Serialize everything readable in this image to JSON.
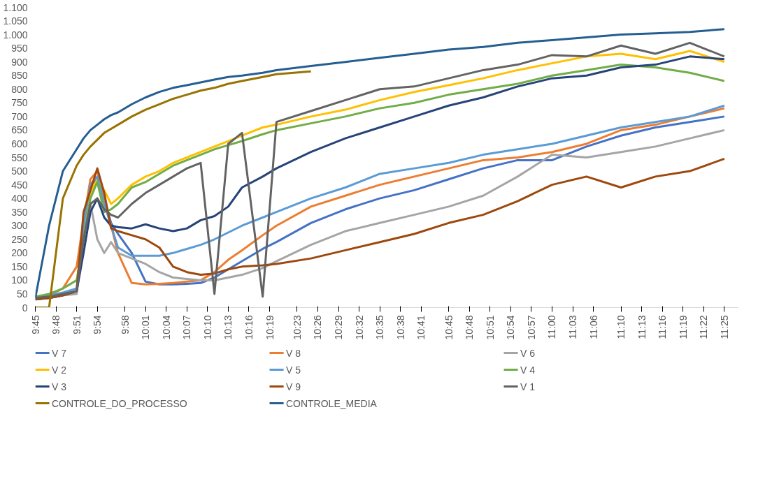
{
  "chart_data": {
    "type": "line",
    "x": [
      9.75,
      9.7833,
      9.8167,
      9.85,
      9.8667,
      9.8833,
      9.9,
      9.9167,
      9.9333,
      9.95,
      9.9833,
      10.0167,
      10.05,
      10.0833,
      10.1167,
      10.15,
      10.1833,
      10.2167,
      10.25,
      10.3,
      10.3333,
      10.4167,
      10.5,
      10.5833,
      10.6667,
      10.75,
      10.8333,
      10.9167,
      11.0,
      11.0833,
      11.1667,
      11.25,
      11.3333,
      11.4167
    ],
    "xlim": [
      9.75,
      11.45
    ],
    "xticks": [
      {
        "value": 9.75,
        "label": "9:45"
      },
      {
        "value": 9.8,
        "label": "9:48"
      },
      {
        "value": 9.85,
        "label": "9:51"
      },
      {
        "value": 9.9,
        "label": "9:54"
      },
      {
        "value": 9.9667,
        "label": "9:58"
      },
      {
        "value": 10.0167,
        "label": "10:01"
      },
      {
        "value": 10.0667,
        "label": "10:04"
      },
      {
        "value": 10.1167,
        "label": "10:07"
      },
      {
        "value": 10.1667,
        "label": "10:10"
      },
      {
        "value": 10.2167,
        "label": "10:13"
      },
      {
        "value": 10.2667,
        "label": "10:16"
      },
      {
        "value": 10.3167,
        "label": "10:19"
      },
      {
        "value": 10.3833,
        "label": "10:23"
      },
      {
        "value": 10.4333,
        "label": "10:26"
      },
      {
        "value": 10.4833,
        "label": "10:29"
      },
      {
        "value": 10.5333,
        "label": "10:32"
      },
      {
        "value": 10.5833,
        "label": "10:35"
      },
      {
        "value": 10.6333,
        "label": "10:38"
      },
      {
        "value": 10.6833,
        "label": "10:41"
      },
      {
        "value": 10.75,
        "label": "10:45"
      },
      {
        "value": 10.8,
        "label": "10:48"
      },
      {
        "value": 10.85,
        "label": "10:51"
      },
      {
        "value": 10.9,
        "label": "10:54"
      },
      {
        "value": 10.95,
        "label": "10:57"
      },
      {
        "value": 11.0,
        "label": "11:00"
      },
      {
        "value": 11.05,
        "label": "11:03"
      },
      {
        "value": 11.1,
        "label": "11:06"
      },
      {
        "value": 11.1667,
        "label": "11:10"
      },
      {
        "value": 11.2167,
        "label": "11:13"
      },
      {
        "value": 11.2667,
        "label": "11:16"
      },
      {
        "value": 11.3167,
        "label": "11:19"
      },
      {
        "value": 11.3667,
        "label": "11:22"
      },
      {
        "value": 11.4167,
        "label": "11:25"
      }
    ],
    "ylim": [
      0,
      1100
    ],
    "yticks": [
      0,
      50,
      100,
      150,
      200,
      250,
      300,
      350,
      400,
      450,
      500,
      550,
      600,
      650,
      700,
      750,
      800,
      850,
      900,
      950,
      {
        "value": 1000,
        "label": "1.000"
      },
      {
        "value": 1050,
        "label": "1.050"
      },
      {
        "value": 1100,
        "label": "1.100"
      }
    ],
    "legend": "bottom",
    "series": [
      {
        "name": "V 7",
        "color": "#4472c4",
        "values": [
          40,
          40,
          50,
          60,
          300,
          450,
          470,
          400,
          310,
          270,
          200,
          95,
          85,
          85,
          87,
          90,
          110,
          140,
          170,
          215,
          240,
          310,
          360,
          400,
          430,
          470,
          510,
          540,
          540,
          590,
          630,
          660,
          680,
          700
        ]
      },
      {
        "name": "V 8",
        "color": "#ed7d31",
        "values": [
          40,
          45,
          70,
          150,
          320,
          470,
          500,
          400,
          300,
          200,
          90,
          85,
          87,
          90,
          95,
          100,
          130,
          175,
          210,
          265,
          300,
          370,
          410,
          450,
          480,
          510,
          540,
          550,
          570,
          600,
          650,
          670,
          700,
          730
        ]
      },
      {
        "name": "V 6",
        "color": "#a5a5a5",
        "values": [
          40,
          40,
          45,
          50,
          250,
          380,
          250,
          200,
          240,
          200,
          180,
          160,
          130,
          110,
          105,
          100,
          100,
          110,
          120,
          145,
          170,
          230,
          280,
          310,
          340,
          370,
          410,
          480,
          560,
          550,
          570,
          590,
          620,
          650
        ]
      },
      {
        "name": "V 2",
        "color": "#ffc000",
        "values": [
          null,
          null,
          null,
          null,
          250,
          420,
          470,
          430,
          380,
          400,
          450,
          480,
          500,
          530,
          550,
          570,
          590,
          610,
          630,
          660,
          670,
          700,
          725,
          760,
          790,
          815,
          840,
          870,
          895,
          920,
          930,
          910,
          940,
          900
        ]
      },
      {
        "name": "V 5",
        "color": "#5b9bd5",
        "values": [
          40,
          45,
          55,
          70,
          300,
          450,
          480,
          380,
          300,
          220,
          190,
          190,
          190,
          200,
          215,
          230,
          250,
          275,
          300,
          330,
          350,
          400,
          440,
          490,
          510,
          530,
          560,
          580,
          600,
          630,
          660,
          680,
          700,
          740
        ]
      },
      {
        "name": "V 4",
        "color": "#70ad47",
        "values": [
          40,
          50,
          70,
          100,
          250,
          400,
          460,
          350,
          360,
          380,
          440,
          460,
          490,
          520,
          540,
          560,
          580,
          595,
          610,
          635,
          650,
          675,
          700,
          730,
          750,
          780,
          800,
          820,
          850,
          870,
          890,
          880,
          860,
          830
        ]
      },
      {
        "name": "V 3",
        "color": "#264478",
        "values": [
          30,
          35,
          45,
          60,
          200,
          350,
          400,
          330,
          300,
          295,
          290,
          305,
          290,
          280,
          290,
          320,
          335,
          370,
          440,
          480,
          510,
          570,
          620,
          660,
          700,
          740,
          770,
          810,
          840,
          850,
          880,
          890,
          920,
          910
        ]
      },
      {
        "name": "V 9",
        "color": "#9e480e",
        "values": [
          30,
          35,
          45,
          60,
          350,
          430,
          510,
          420,
          290,
          280,
          265,
          250,
          220,
          150,
          130,
          120,
          125,
          140,
          150,
          155,
          160,
          180,
          210,
          240,
          270,
          310,
          340,
          390,
          450,
          480,
          440,
          480,
          500,
          545
        ]
      },
      {
        "name": "V 1",
        "color": "#636363",
        "values": [
          35,
          40,
          50,
          60,
          250,
          380,
          400,
          360,
          340,
          330,
          380,
          420,
          450,
          480,
          510,
          530,
          50,
          600,
          640,
          40,
          680,
          720,
          760,
          800,
          810,
          840,
          870,
          890,
          925,
          920,
          960,
          930,
          970,
          920
        ]
      },
      {
        "name": "CONTROLE_DO_PROCESSO",
        "color": "#997300",
        "values": [
          0,
          0,
          400,
          520,
          560,
          590,
          615,
          640,
          655,
          670,
          700,
          725,
          745,
          765,
          780,
          795,
          805,
          820,
          830,
          845,
          855,
          865,
          null,
          null,
          null,
          null,
          null,
          null,
          null,
          null,
          null,
          null,
          null,
          null
        ]
      },
      {
        "name": "CONTROLE_MEDIA",
        "color": "#255e91",
        "values": [
          35,
          300,
          500,
          580,
          620,
          650,
          670,
          690,
          705,
          715,
          745,
          770,
          790,
          805,
          815,
          825,
          835,
          845,
          850,
          860,
          870,
          885,
          900,
          915,
          930,
          945,
          955,
          970,
          980,
          990,
          1000,
          1005,
          1010,
          1020
        ]
      }
    ]
  }
}
